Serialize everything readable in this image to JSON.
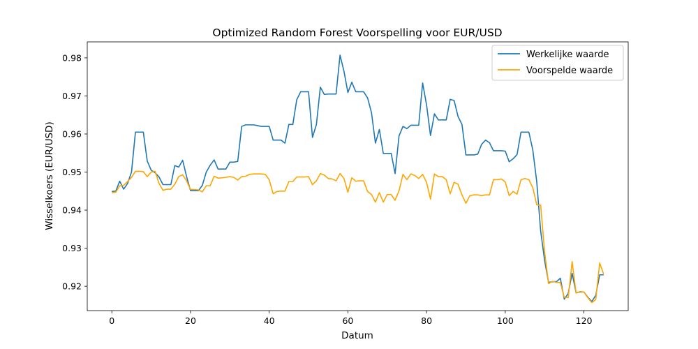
{
  "chart_data": {
    "type": "line",
    "title": "Optimized Random Forest Voorspelling voor EUR/USD",
    "xlabel": "Datum",
    "ylabel": "Wisselkoers (EUR/USD)",
    "xlim": [
      -6.25,
      131.25
    ],
    "ylim": [
      0.9136,
      0.9842
    ],
    "x_ticks": [
      0,
      20,
      40,
      60,
      80,
      100,
      120
    ],
    "y_ticks": [
      0.92,
      0.93,
      0.94,
      0.95,
      0.96,
      0.97,
      0.98
    ],
    "y_tick_labels": [
      "0.92",
      "0.93",
      "0.94",
      "0.95",
      "0.96",
      "0.97",
      "0.98"
    ],
    "grid": false,
    "legend_position": "top-right",
    "series": [
      {
        "name": "Werkelijke waarde",
        "color": "#1f77b4",
        "values": [
          0.9449,
          0.945,
          0.9476,
          0.9455,
          0.947,
          0.95,
          0.9605,
          0.9605,
          0.9605,
          0.9529,
          0.9505,
          0.9498,
          0.9487,
          0.9467,
          0.9467,
          0.9467,
          0.9517,
          0.9513,
          0.9531,
          0.9488,
          0.9451,
          0.9451,
          0.9451,
          0.9465,
          0.95,
          0.9518,
          0.9532,
          0.9508,
          0.9508,
          0.9508,
          0.9526,
          0.9526,
          0.9528,
          0.962,
          0.9624,
          0.9624,
          0.9624,
          0.9622,
          0.962,
          0.962,
          0.962,
          0.9584,
          0.9584,
          0.9584,
          0.9576,
          0.9625,
          0.9625,
          0.969,
          0.9711,
          0.9711,
          0.9711,
          0.9591,
          0.9625,
          0.9723,
          0.9704,
          0.9705,
          0.9705,
          0.9705,
          0.9807,
          0.9765,
          0.9709,
          0.9736,
          0.9711,
          0.9711,
          0.9711,
          0.9695,
          0.9656,
          0.9576,
          0.9612,
          0.9549,
          0.9549,
          0.9549,
          0.9496,
          0.9595,
          0.962,
          0.9614,
          0.9623,
          0.9623,
          0.9623,
          0.9734,
          0.9676,
          0.9596,
          0.9653,
          0.9637,
          0.9637,
          0.9637,
          0.9691,
          0.9688,
          0.9646,
          0.9625,
          0.9545,
          0.9545,
          0.9545,
          0.9547,
          0.9573,
          0.9584,
          0.9577,
          0.9556,
          0.9556,
          0.9556,
          0.9555,
          0.9527,
          0.9535,
          0.9546,
          0.9605,
          0.9605,
          0.9605,
          0.9558,
          0.9475,
          0.9345,
          0.9268,
          0.921,
          0.9212,
          0.9212,
          0.9221,
          0.9166,
          0.9181,
          0.9234,
          0.9183,
          0.9185,
          0.9185,
          0.9171,
          0.916,
          0.9176,
          0.923,
          0.923
        ]
      },
      {
        "name": "Voorspelde waarde",
        "color": "#ffa500",
        "values": [
          0.9446,
          0.9447,
          0.9464,
          0.9465,
          0.9475,
          0.9486,
          0.9502,
          0.9502,
          0.9501,
          0.9488,
          0.95,
          0.9502,
          0.947,
          0.9452,
          0.9455,
          0.9455,
          0.9468,
          0.9488,
          0.9493,
          0.9477,
          0.9454,
          0.9454,
          0.9453,
          0.9448,
          0.9464,
          0.9464,
          0.9489,
          0.9484,
          0.9485,
          0.9486,
          0.9488,
          0.9486,
          0.9479,
          0.9488,
          0.9489,
          0.9494,
          0.9495,
          0.9495,
          0.9495,
          0.9494,
          0.948,
          0.9443,
          0.9449,
          0.945,
          0.945,
          0.9475,
          0.9475,
          0.9487,
          0.9487,
          0.9487,
          0.9488,
          0.9467,
          0.9477,
          0.9496,
          0.9492,
          0.9483,
          0.9482,
          0.9477,
          0.9496,
          0.9483,
          0.9447,
          0.9485,
          0.9476,
          0.9477,
          0.9477,
          0.9449,
          0.9441,
          0.9421,
          0.9446,
          0.9421,
          0.9441,
          0.9441,
          0.9426,
          0.9451,
          0.9494,
          0.948,
          0.9495,
          0.9491,
          0.9483,
          0.9494,
          0.9473,
          0.9429,
          0.9495,
          0.9488,
          0.9488,
          0.948,
          0.9443,
          0.9473,
          0.9468,
          0.944,
          0.9418,
          0.9438,
          0.944,
          0.944,
          0.9438,
          0.944,
          0.944,
          0.948,
          0.948,
          0.9482,
          0.9474,
          0.9438,
          0.9449,
          0.9442,
          0.948,
          0.9483,
          0.948,
          0.9459,
          0.9414,
          0.9413,
          0.929,
          0.9207,
          0.9213,
          0.921,
          0.921,
          0.9171,
          0.917,
          0.9265,
          0.9182,
          0.9186,
          0.9185,
          0.917,
          0.9157,
          0.9165,
          0.9261,
          0.9232
        ]
      }
    ]
  }
}
